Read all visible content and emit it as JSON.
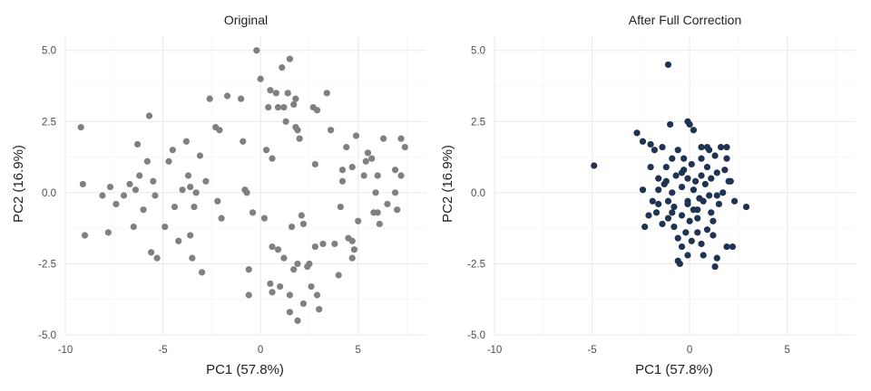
{
  "chart_data": [
    {
      "type": "scatter",
      "title": "Original",
      "xlabel": "PC1 (57.8%)",
      "ylabel": "PC2 (16.9%)",
      "xlim": [
        -10,
        8.5
      ],
      "ylim": [
        -5,
        5.5
      ],
      "x_ticks": [
        -10,
        -5,
        0,
        5
      ],
      "x_tick_labels": [
        "-10",
        "-5",
        "0",
        "5"
      ],
      "y_ticks": [
        -5,
        -2.5,
        0,
        2.5,
        5
      ],
      "y_tick_labels": [
        "-5.0",
        "-2.5",
        "0.0",
        "2.5",
        "5.0"
      ],
      "grid": true,
      "point_color": "#808080",
      "points": [
        [
          -9.2,
          2.3
        ],
        [
          -9.1,
          0.3
        ],
        [
          -9.0,
          -1.5
        ],
        [
          -8.1,
          -0.1
        ],
        [
          -7.8,
          -1.4
        ],
        [
          -7.7,
          0.2
        ],
        [
          -7.4,
          -0.4
        ],
        [
          -7.0,
          -0.1
        ],
        [
          -6.7,
          0.3
        ],
        [
          -6.5,
          -1.2
        ],
        [
          -6.4,
          0.1
        ],
        [
          -6.3,
          1.7
        ],
        [
          -6.2,
          0.6
        ],
        [
          -6.0,
          -0.6
        ],
        [
          -5.8,
          1.1
        ],
        [
          -5.7,
          2.7
        ],
        [
          -5.6,
          -2.1
        ],
        [
          -5.5,
          0.4
        ],
        [
          -5.4,
          -0.1
        ],
        [
          -5.3,
          -2.3
        ],
        [
          -4.9,
          -1.2
        ],
        [
          -4.7,
          1.1
        ],
        [
          -4.5,
          1.5
        ],
        [
          -4.4,
          -0.5
        ],
        [
          -4.2,
          -1.7
        ],
        [
          -4.0,
          0.1
        ],
        [
          -3.8,
          1.8
        ],
        [
          -3.7,
          0.6
        ],
        [
          -3.6,
          0.2
        ],
        [
          -3.6,
          -1.5
        ],
        [
          -3.5,
          -2.3
        ],
        [
          -3.4,
          -0.5
        ],
        [
          -3.3,
          0.0
        ],
        [
          -3.1,
          1.3
        ],
        [
          -3.0,
          -2.8
        ],
        [
          -2.8,
          0.4
        ],
        [
          -2.6,
          3.3
        ],
        [
          -2.3,
          2.3
        ],
        [
          -2.2,
          -0.3
        ],
        [
          -2.1,
          2.2
        ],
        [
          -2.0,
          -0.9
        ],
        [
          -1.7,
          3.4
        ],
        [
          -1.0,
          3.3
        ],
        [
          -0.9,
          1.8
        ],
        [
          -0.8,
          0.1
        ],
        [
          -0.7,
          0.0
        ],
        [
          -0.6,
          -3.6
        ],
        [
          -0.6,
          -2.7
        ],
        [
          -0.4,
          -0.7
        ],
        [
          -0.2,
          5.0
        ],
        [
          0.0,
          4.0
        ],
        [
          0.2,
          -0.9
        ],
        [
          0.3,
          1.5
        ],
        [
          0.4,
          3.0
        ],
        [
          0.5,
          -3.2
        ],
        [
          0.6,
          1.2
        ],
        [
          0.6,
          -3.5
        ],
        [
          0.5,
          3.6
        ],
        [
          0.6,
          -1.9
        ],
        [
          0.8,
          3.5
        ],
        [
          0.9,
          -2.0
        ],
        [
          0.9,
          3.0
        ],
        [
          1.0,
          -3.3
        ],
        [
          1.1,
          4.4
        ],
        [
          1.2,
          3.0
        ],
        [
          1.2,
          -2.3
        ],
        [
          1.3,
          2.5
        ],
        [
          1.4,
          3.5
        ],
        [
          1.5,
          4.7
        ],
        [
          1.5,
          -3.6
        ],
        [
          1.5,
          -4.2
        ],
        [
          1.6,
          -1.2
        ],
        [
          1.7,
          -2.7
        ],
        [
          1.7,
          3.1
        ],
        [
          1.8,
          3.3
        ],
        [
          1.8,
          2.3
        ],
        [
          1.9,
          2.2
        ],
        [
          1.9,
          -2.5
        ],
        [
          1.9,
          -4.5
        ],
        [
          2.0,
          1.9
        ],
        [
          2.1,
          -0.8
        ],
        [
          2.2,
          -1.1
        ],
        [
          2.2,
          -3.9
        ],
        [
          2.4,
          -2.6
        ],
        [
          2.5,
          -2.5
        ],
        [
          2.6,
          -3.3
        ],
        [
          2.7,
          3.0
        ],
        [
          2.8,
          -1.9
        ],
        [
          2.8,
          1.0
        ],
        [
          2.9,
          2.9
        ],
        [
          2.9,
          -3.6
        ],
        [
          3.0,
          -4.1
        ],
        [
          3.2,
          -1.8
        ],
        [
          3.4,
          3.5
        ],
        [
          3.6,
          2.2
        ],
        [
          3.8,
          -1.8
        ],
        [
          4.0,
          -2.9
        ],
        [
          4.1,
          -0.5
        ],
        [
          4.2,
          0.4
        ],
        [
          4.2,
          0.8
        ],
        [
          4.4,
          1.6
        ],
        [
          4.5,
          -1.6
        ],
        [
          4.7,
          -1.7
        ],
        [
          4.7,
          -2.3
        ],
        [
          4.7,
          0.9
        ],
        [
          4.8,
          -2.0
        ],
        [
          4.9,
          2.0
        ],
        [
          5.0,
          -1.0
        ],
        [
          5.3,
          0.6
        ],
        [
          5.4,
          1.1
        ],
        [
          5.5,
          1.4
        ],
        [
          5.7,
          1.2
        ],
        [
          5.8,
          -0.7
        ],
        [
          5.9,
          0.0
        ],
        [
          6.0,
          0.6
        ],
        [
          6.0,
          -0.7
        ],
        [
          6.1,
          -1.1
        ],
        [
          6.3,
          1.9
        ],
        [
          6.5,
          -0.4
        ],
        [
          6.9,
          0.8
        ],
        [
          6.9,
          0.0
        ],
        [
          7.0,
          -0.6
        ],
        [
          7.2,
          0.6
        ],
        [
          7.2,
          1.9
        ],
        [
          7.4,
          1.6
        ]
      ]
    },
    {
      "type": "scatter",
      "title": "After Full Correction",
      "xlabel": "PC1 (57.8%)",
      "ylabel": "PC2 (16.9%)",
      "xlim": [
        -10,
        8.5
      ],
      "ylim": [
        -5,
        5.5
      ],
      "x_ticks": [
        -10,
        -5,
        0,
        5
      ],
      "x_tick_labels": [
        "-10",
        "-5",
        "0",
        "5"
      ],
      "y_ticks": [
        -5,
        -2.5,
        0,
        2.5,
        5
      ],
      "y_tick_labels": [
        "-5.0",
        "-2.5",
        "0.0",
        "2.5",
        "5.0"
      ],
      "grid": true,
      "point_color": "#1f3352",
      "points": [
        [
          -4.9,
          0.95
        ],
        [
          -1.1,
          4.5
        ],
        [
          -2.7,
          2.1
        ],
        [
          -2.4,
          1.8
        ],
        [
          -2.0,
          1.7
        ],
        [
          -1.8,
          1.5
        ],
        [
          -1.4,
          1.6
        ],
        [
          -1.0,
          2.4
        ],
        [
          -0.6,
          1.5
        ],
        [
          -0.1,
          2.5
        ],
        [
          0.0,
          2.4
        ],
        [
          0.2,
          2.2
        ],
        [
          0.6,
          1.6
        ],
        [
          0.9,
          1.6
        ],
        [
          1.0,
          1.5
        ],
        [
          1.6,
          1.6
        ],
        [
          1.9,
          1.6
        ],
        [
          1.3,
          1.3
        ],
        [
          1.9,
          1.2
        ],
        [
          1.8,
          0.8
        ],
        [
          2.1,
          0.4
        ],
        [
          2.0,
          0.4
        ],
        [
          2.3,
          -0.3
        ],
        [
          2.9,
          -0.5
        ],
        [
          1.5,
          -0.4
        ],
        [
          1.1,
          -0.7
        ],
        [
          0.4,
          -0.6
        ],
        [
          -0.4,
          -0.8
        ],
        [
          -1.1,
          -0.9
        ],
        [
          -1.7,
          -0.7
        ],
        [
          -2.1,
          -0.8
        ],
        [
          -2.4,
          0.1
        ],
        [
          -1.6,
          0.5
        ],
        [
          -1.2,
          0.4
        ],
        [
          -0.7,
          0.6
        ],
        [
          -0.3,
          0.8
        ],
        [
          0.3,
          0.4
        ],
        [
          0.8,
          0.3
        ],
        [
          1.4,
          0.7
        ],
        [
          1.0,
          -0.1
        ],
        [
          0.5,
          -0.2
        ],
        [
          -0.1,
          -0.3
        ],
        [
          -0.8,
          -0.5
        ],
        [
          -1.6,
          -0.4
        ],
        [
          -2.0,
          0.9
        ],
        [
          -1.2,
          0.9
        ],
        [
          -0.4,
          0.7
        ],
        [
          0.2,
          0.1
        ],
        [
          0.9,
          -1.3
        ],
        [
          0.0,
          -1.0
        ],
        [
          -0.8,
          -1.2
        ],
        [
          -1.4,
          -1.1
        ],
        [
          -0.6,
          -1.6
        ],
        [
          0.6,
          -1.8
        ],
        [
          1.2,
          -1.5
        ],
        [
          1.9,
          -1.9
        ],
        [
          2.2,
          -1.9
        ],
        [
          1.4,
          -2.3
        ],
        [
          1.3,
          -2.6
        ],
        [
          0.7,
          -2.2
        ],
        [
          -0.1,
          -2.2
        ],
        [
          -0.4,
          -1.9
        ],
        [
          -0.5,
          -2.5
        ],
        [
          -0.6,
          -2.4
        ],
        [
          0.1,
          -1.7
        ],
        [
          -2.3,
          -1.2
        ],
        [
          -1.9,
          -0.3
        ],
        [
          -0.9,
          0.0
        ],
        [
          0.1,
          1.0
        ],
        [
          0.6,
          1.2
        ],
        [
          -0.3,
          1.2
        ],
        [
          -0.9,
          1.2
        ],
        [
          -1.6,
          0.1
        ],
        [
          -0.1,
          0.5
        ],
        [
          0.4,
          -0.9
        ],
        [
          1.1,
          0.5
        ],
        [
          1.7,
          0.0
        ],
        [
          -0.2,
          -1.4
        ],
        [
          0.4,
          -1.4
        ],
        [
          -0.9,
          -0.7
        ],
        [
          -1.3,
          0.3
        ],
        [
          1.4,
          -0.1
        ],
        [
          0.7,
          -0.3
        ],
        [
          1.2,
          -1.0
        ],
        [
          -0.4,
          0.2
        ],
        [
          0.2,
          -0.6
        ],
        [
          0.9,
          0.9
        ],
        [
          -1.1,
          -0.3
        ],
        [
          -0.1,
          -0.4
        ],
        [
          0.6,
          0.6
        ]
      ]
    }
  ]
}
